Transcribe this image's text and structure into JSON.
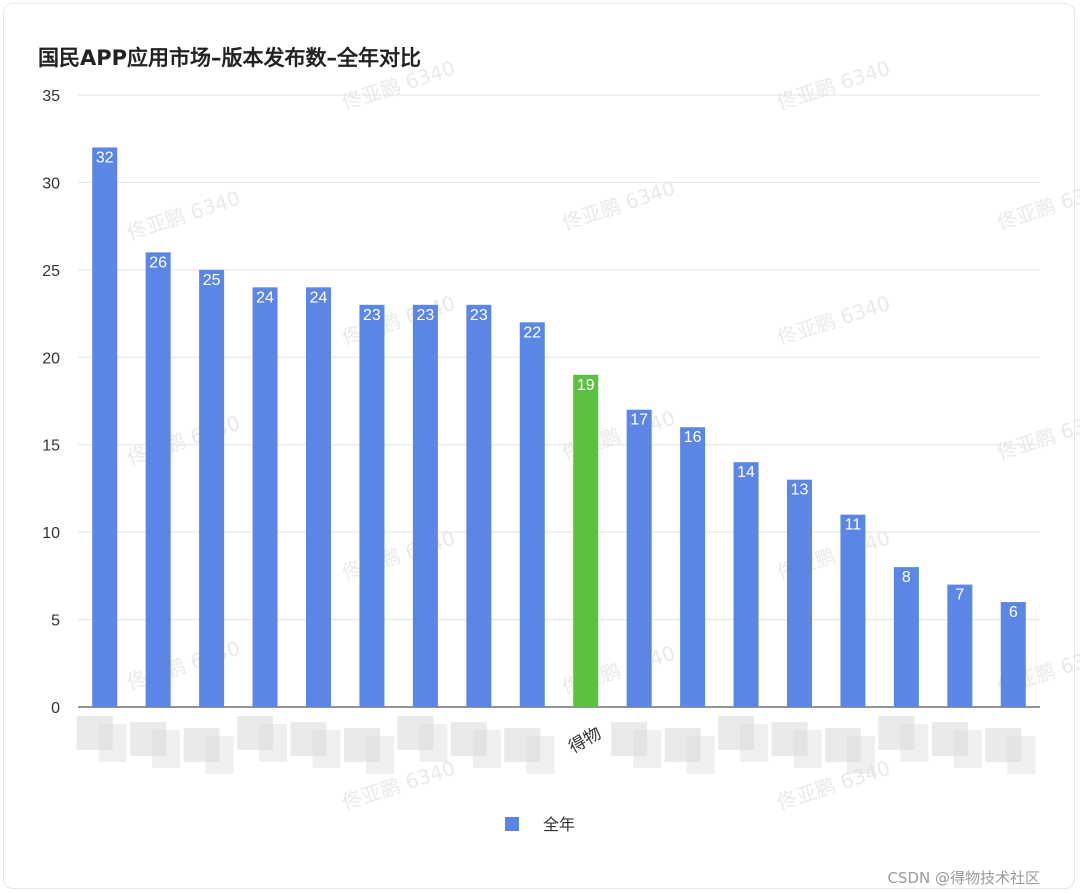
{
  "colors": {
    "bar": "#5b86e5",
    "highlight": "#5cc043",
    "grid": "#e3e3e3",
    "axis": "#555555",
    "blur": "#dcdcdc"
  },
  "chart_data": {
    "type": "bar",
    "title": "国民APP应用市场–版本发布数–全年对比",
    "series": [
      {
        "name": "全年",
        "values": [
          32,
          26,
          25,
          24,
          24,
          23,
          23,
          23,
          22,
          19,
          17,
          16,
          14,
          13,
          11,
          8,
          7,
          6
        ]
      }
    ],
    "categories": [
      "",
      "",
      "",
      "",
      "",
      "",
      "",
      "",
      "",
      "得物",
      "",
      "",
      "",
      "",
      "",
      "",
      "",
      ""
    ],
    "highlight_index": 9,
    "ylim": [
      0,
      35
    ],
    "yticks": [
      0,
      5,
      10,
      15,
      20,
      25,
      30,
      35
    ],
    "grid": true,
    "legend_position": "bottom-center"
  },
  "watermark_text": "佟亚鹏 6340",
  "footer_credit": "CSDN @得物技术社区"
}
